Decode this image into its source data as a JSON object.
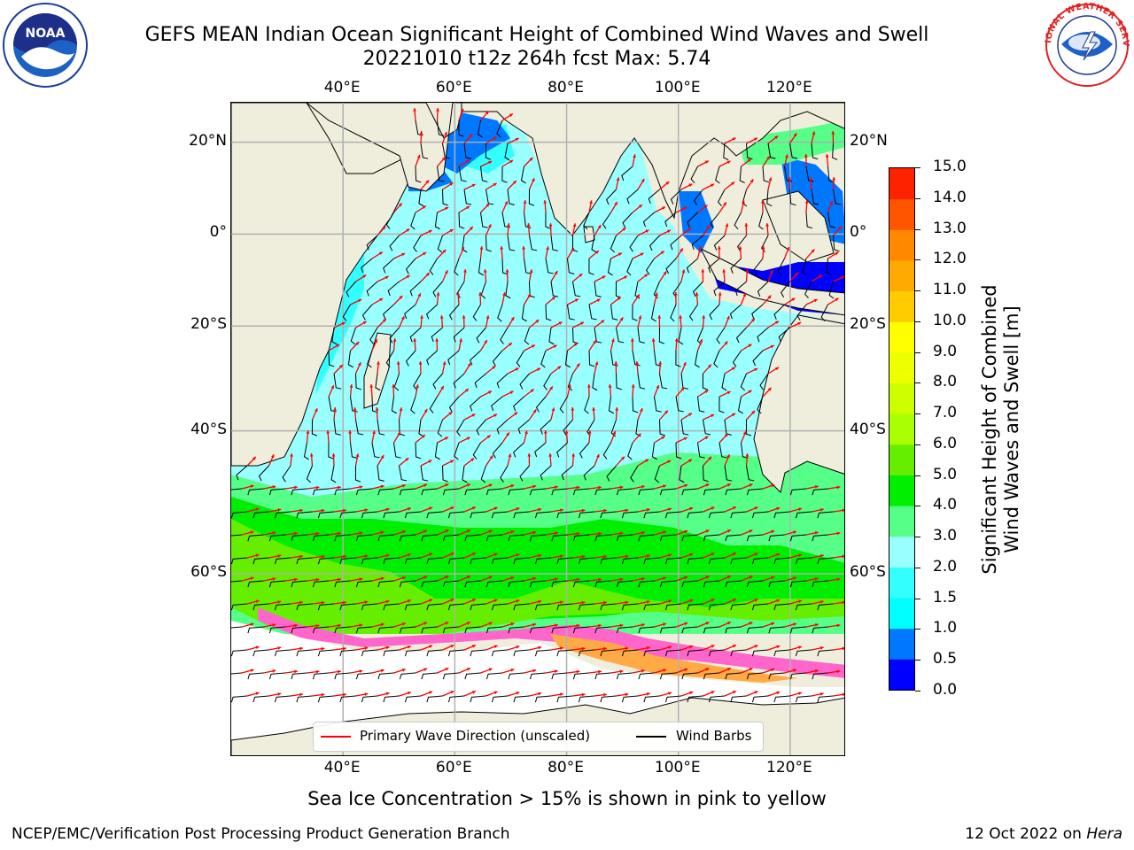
{
  "header": {
    "title_line1": "GEFS MEAN Indian Ocean Significant Height of Combined Wind Waves and Swell",
    "title_line2": "20221010 t12z 264h fcst   Max: 5.74"
  },
  "logos": {
    "left": {
      "name": "noaa-logo",
      "text": "NOAA",
      "ring_text": "NATIONAL OCEANIC AND ATMOSPHERIC ADMINISTRATION · U.S. DEPARTMENT OF COMMERCE"
    },
    "right": {
      "name": "nws-logo",
      "ring_text": "NATIONAL WEATHER SERVICE"
    }
  },
  "map": {
    "lon_labels": [
      "40°E",
      "60°E",
      "80°E",
      "100°E",
      "120°E"
    ],
    "lat_labels": [
      "20°N",
      "0°",
      "20°S",
      "40°S",
      "60°S"
    ],
    "lon_ticks": [
      40,
      60,
      80,
      100,
      120
    ],
    "lat_ticks": [
      20,
      0,
      -20,
      -40,
      -60
    ],
    "extent": {
      "lon_min": 20,
      "lon_max": 130,
      "lat_min": -75,
      "lat_max": 28
    },
    "colors": {
      "land": "#efeedc",
      "ice_free_background": "#ffffff",
      "grid": "#b0b0b0",
      "wave_arrow": "#ff0000",
      "wind_barb": "#000000"
    }
  },
  "colorbar": {
    "label": "Significant Height of Combined Wind Waves and Swell [m]",
    "label_line1": "Significant Height of Combined",
    "label_line2": "Wind Waves and Swell [m]",
    "ticks": [
      "0.0",
      "0.5",
      "1.0",
      "1.5",
      "2.0",
      "3.0",
      "4.0",
      "5.0",
      "6.0",
      "7.0",
      "8.0",
      "9.0",
      "10.0",
      "11.0",
      "12.0",
      "13.0",
      "14.0",
      "15.0"
    ],
    "colors": [
      "#0000ff",
      "#0077ff",
      "#00ffff",
      "#33ffff",
      "#99ffff",
      "#55ff88",
      "#00ee00",
      "#66ee00",
      "#aaff00",
      "#ccff00",
      "#eeff00",
      "#ffff00",
      "#ffcc00",
      "#ffaa00",
      "#ff8800",
      "#ff5500",
      "#ff2200",
      "#ff0000"
    ]
  },
  "legend": {
    "wave_label": "Primary Wave Direction (unscaled)",
    "wind_label": "Wind Barbs"
  },
  "note": "Sea Ice Concentration > 15% is shown in pink to yellow",
  "footer": {
    "left": "NCEP/EMC/Verification Post Processing Product Generation Branch",
    "right_date": "12 Oct 2022 on ",
    "right_host": "Hera"
  }
}
